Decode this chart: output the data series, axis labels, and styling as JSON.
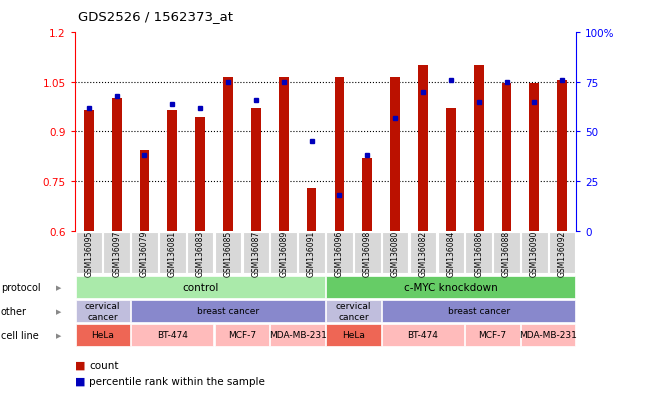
{
  "title": "GDS2526 / 1562373_at",
  "samples": [
    "GSM136095",
    "GSM136097",
    "GSM136079",
    "GSM136081",
    "GSM136083",
    "GSM136085",
    "GSM136087",
    "GSM136089",
    "GSM136091",
    "GSM136096",
    "GSM136098",
    "GSM136080",
    "GSM136082",
    "GSM136084",
    "GSM136086",
    "GSM136088",
    "GSM136090",
    "GSM136092"
  ],
  "red_values": [
    0.965,
    1.0,
    0.845,
    0.965,
    0.945,
    1.065,
    0.97,
    1.065,
    0.73,
    1.065,
    0.82,
    1.065,
    1.1,
    0.97,
    1.1,
    1.045,
    1.045,
    1.055
  ],
  "blue_pct": [
    62,
    68,
    38,
    64,
    62,
    75,
    66,
    75,
    45,
    18,
    38,
    57,
    70,
    76,
    65,
    75,
    65,
    76
  ],
  "ylim_left": [
    0.6,
    1.2
  ],
  "ylim_right": [
    0,
    100
  ],
  "yticks_left": [
    0.6,
    0.75,
    0.9,
    1.05,
    1.2
  ],
  "ytick_labels_left": [
    "0.6",
    "0.75",
    "0.9",
    "1.05",
    "1.2"
  ],
  "yticks_right": [
    0,
    25,
    50,
    75,
    100
  ],
  "ytick_labels_right": [
    "0",
    "25",
    "50",
    "75",
    "100%"
  ],
  "grid_lines": [
    0.75,
    0.9,
    1.05
  ],
  "protocol_specs": [
    {
      "label": "control",
      "start": 0,
      "end": 9,
      "color": "#aaeaaa"
    },
    {
      "label": "c-MYC knockdown",
      "start": 9,
      "end": 18,
      "color": "#66cc66"
    }
  ],
  "other_specs": [
    {
      "label": "cervical\ncancer",
      "start": 0,
      "end": 2,
      "color": "#c0bedd"
    },
    {
      "label": "breast cancer",
      "start": 2,
      "end": 9,
      "color": "#8888cc"
    },
    {
      "label": "cervical\ncancer",
      "start": 9,
      "end": 11,
      "color": "#c0bedd"
    },
    {
      "label": "breast cancer",
      "start": 11,
      "end": 18,
      "color": "#8888cc"
    }
  ],
  "cell_specs": [
    {
      "label": "HeLa",
      "start": 0,
      "end": 2,
      "color": "#ee6655"
    },
    {
      "label": "BT-474",
      "start": 2,
      "end": 5,
      "color": "#ffbbbb"
    },
    {
      "label": "MCF-7",
      "start": 5,
      "end": 7,
      "color": "#ffbbbb"
    },
    {
      "label": "MDA-MB-231",
      "start": 7,
      "end": 9,
      "color": "#ffbbbb"
    },
    {
      "label": "HeLa",
      "start": 9,
      "end": 11,
      "color": "#ee6655"
    },
    {
      "label": "BT-474",
      "start": 11,
      "end": 14,
      "color": "#ffbbbb"
    },
    {
      "label": "MCF-7",
      "start": 14,
      "end": 16,
      "color": "#ffbbbb"
    },
    {
      "label": "MDA-MB-231",
      "start": 16,
      "end": 18,
      "color": "#ffbbbb"
    }
  ],
  "bar_color_red": "#bb1100",
  "bar_color_blue": "#0000bb",
  "bar_width": 0.35,
  "background_color": "#ffffff",
  "xtick_bg": "#d8d8d8",
  "legend_count": "count",
  "legend_pct": "percentile rank within the sample",
  "row_labels": [
    "protocol",
    "other",
    "cell line"
  ],
  "arrow_color": "#888888"
}
